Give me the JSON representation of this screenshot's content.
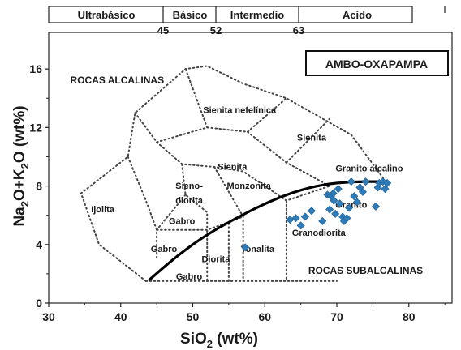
{
  "chart_data": {
    "type": "scatter",
    "title": "AMBO-OXAPAMPA",
    "xlabel": "SiO2 (wt%)",
    "ylabel": "Na2O+K2O (wt%)",
    "xlim": [
      30,
      86
    ],
    "ylim": [
      0,
      18.5
    ],
    "x_ticks": [
      30,
      40,
      50,
      60,
      70,
      80
    ],
    "y_ticks": [
      0,
      4,
      8,
      12,
      16
    ],
    "grid": false,
    "top_scale": {
      "divisions": [
        {
          "label": "Ultrabásico",
          "from": 30,
          "to": 45
        },
        {
          "label": "Básico",
          "from": 45,
          "to": 52
        },
        {
          "label": "Intermedio",
          "from": 52,
          "to": 63
        },
        {
          "label": "Acido",
          "from": 63,
          "to": 80
        }
      ],
      "boundary_labels": [
        "45",
        "52",
        "63"
      ]
    },
    "region_labels": [
      {
        "text": "ROCAS ALCALINAS",
        "x": 39.5,
        "y": 15.0
      },
      {
        "text": "ROCAS SUBALCALINAS",
        "x": 74.0,
        "y": 2.0
      },
      {
        "text": "Sienita nefelínica",
        "x": 56.5,
        "y": 13.0
      },
      {
        "text": "Sienita",
        "x": 66.5,
        "y": 11.1
      },
      {
        "text": "Sienita",
        "x": 55.5,
        "y": 9.1
      },
      {
        "text": "Granito alcalino",
        "x": 74.5,
        "y": 9.0
      },
      {
        "text": "Monzonita",
        "x": 57.8,
        "y": 7.8
      },
      {
        "text": "Sieno-",
        "x": 49.5,
        "y": 7.8
      },
      {
        "text": "diorita",
        "x": 49.5,
        "y": 6.8
      },
      {
        "text": "Ijolita",
        "x": 37.5,
        "y": 6.2
      },
      {
        "text": "Gabro",
        "x": 48.5,
        "y": 5.4
      },
      {
        "text": "Gabro",
        "x": 46.0,
        "y": 3.5
      },
      {
        "text": "Gabro",
        "x": 49.5,
        "y": 1.6
      },
      {
        "text": "Diorita",
        "x": 53.2,
        "y": 2.8
      },
      {
        "text": "Tonalita",
        "x": 59.0,
        "y": 3.5
      },
      {
        "text": "Granito",
        "x": 72.0,
        "y": 6.5
      },
      {
        "text": "Granodiorita",
        "x": 67.5,
        "y": 4.6
      }
    ],
    "series": [
      {
        "marker": "diamond",
        "color": "#2e7bb8",
        "points": [
          [
            57.3,
            3.8
          ],
          [
            63.5,
            5.7
          ],
          [
            64.3,
            5.8
          ],
          [
            65.0,
            5.3
          ],
          [
            65.6,
            5.9
          ],
          [
            66.5,
            6.3
          ],
          [
            68.0,
            5.6
          ],
          [
            68.7,
            7.4
          ],
          [
            69.0,
            6.4
          ],
          [
            69.2,
            7.3
          ],
          [
            69.6,
            7.0
          ],
          [
            69.8,
            6.1
          ],
          [
            70.2,
            7.8
          ],
          [
            70.4,
            6.8
          ],
          [
            70.8,
            5.9
          ],
          [
            71.0,
            5.6
          ],
          [
            71.4,
            5.8
          ],
          [
            71.7,
            6.5
          ],
          [
            72.0,
            8.3
          ],
          [
            72.4,
            7.3
          ],
          [
            72.8,
            6.9
          ],
          [
            73.2,
            7.9
          ],
          [
            73.6,
            7.6
          ],
          [
            74.0,
            8.3
          ],
          [
            75.4,
            6.6
          ],
          [
            75.7,
            7.9
          ],
          [
            75.9,
            8.2
          ],
          [
            76.4,
            8.3
          ],
          [
            76.7,
            7.8
          ],
          [
            77.0,
            8.2
          ],
          [
            69.5,
            7.5
          ]
        ]
      }
    ],
    "curve": {
      "style": "solid-thick",
      "points": [
        [
          44,
          1.6
        ],
        [
          48,
          3.3
        ],
        [
          52,
          4.7
        ],
        [
          56,
          5.8
        ],
        [
          60,
          6.8
        ],
        [
          64,
          7.6
        ],
        [
          68,
          8.1
        ],
        [
          72,
          8.3
        ],
        [
          76,
          8.3
        ]
      ]
    },
    "field_boundaries": [
      [
        [
          43.5,
          1.5
        ],
        [
          37,
          4
        ],
        [
          34.5,
          7.5
        ],
        [
          41,
          10
        ],
        [
          42,
          13
        ],
        [
          49,
          16
        ],
        [
          52,
          16.2
        ],
        [
          57,
          15
        ],
        [
          63,
          14
        ],
        [
          72,
          11.5
        ],
        [
          76.5,
          8.5
        ]
      ],
      [
        [
          43.5,
          1.5
        ],
        [
          52,
          1.5
        ],
        [
          57,
          1.5
        ],
        [
          63,
          1.5
        ],
        [
          69,
          1.5
        ],
        [
          70,
          1.5
        ]
      ],
      [
        [
          41,
          10
        ],
        [
          43.5,
          7
        ],
        [
          45,
          5
        ],
        [
          45,
          3
        ]
      ],
      [
        [
          42,
          13
        ],
        [
          45,
          11
        ],
        [
          48.5,
          9.5
        ],
        [
          53,
          9.3
        ],
        [
          57,
          9
        ],
        [
          63,
          7
        ],
        [
          69,
          8
        ]
      ],
      [
        [
          45,
          11
        ],
        [
          52,
          12
        ],
        [
          57.6,
          11.7
        ],
        [
          63,
          14
        ]
      ],
      [
        [
          52,
          12
        ],
        [
          49,
          16
        ]
      ],
      [
        [
          48.5,
          9.5
        ],
        [
          49,
          7.4
        ],
        [
          52,
          6.2
        ],
        [
          52,
          5
        ],
        [
          52,
          1.5
        ]
      ],
      [
        [
          45,
          5
        ],
        [
          52,
          5
        ],
        [
          57,
          5.9
        ]
      ],
      [
        [
          49,
          7.4
        ],
        [
          45,
          5
        ]
      ],
      [
        [
          53,
          9.3
        ],
        [
          57,
          5.9
        ],
        [
          57,
          1.5
        ]
      ],
      [
        [
          57.6,
          11.7
        ],
        [
          63,
          9.6
        ],
        [
          69,
          8
        ]
      ],
      [
        [
          63,
          9.6
        ],
        [
          69,
          12.6
        ]
      ],
      [
        [
          63,
          7
        ],
        [
          63,
          1.5
        ]
      ],
      [
        [
          55,
          1.5
        ],
        [
          55,
          5.5
        ]
      ]
    ]
  }
}
